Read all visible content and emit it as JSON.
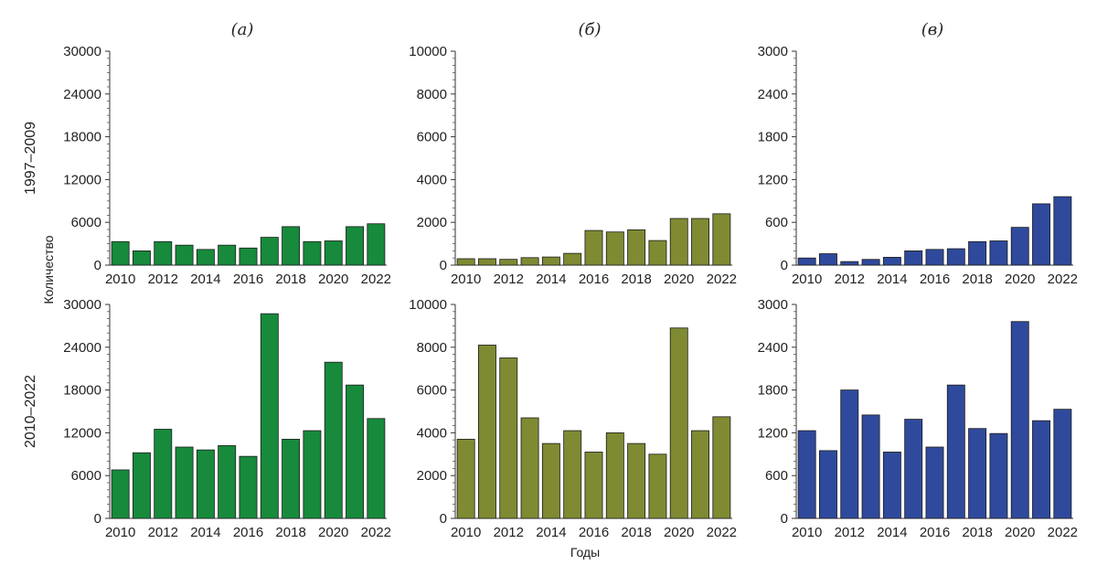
{
  "panel_titles": [
    "(а)",
    "(б)",
    "(в)"
  ],
  "row_labels": [
    "1997–2009",
    "2010–2022"
  ],
  "ylabel": "Количество",
  "xlabel": "Годы",
  "x_tick_labels": [
    "2010",
    "2012",
    "2014",
    "2016",
    "2018",
    "2020",
    "2022"
  ],
  "colors": {
    "a": "#178a3c",
    "b": "#7f8a32",
    "c": "#2f4a9c"
  },
  "chart_data": [
    {
      "type": "bar",
      "panel": "(а)",
      "row": "1997–2009",
      "categories": [
        2010,
        2011,
        2012,
        2013,
        2014,
        2015,
        2016,
        2017,
        2018,
        2019,
        2020,
        2021,
        2022
      ],
      "values": [
        3300,
        2000,
        3300,
        2800,
        2200,
        2800,
        2400,
        3900,
        5400,
        3300,
        3400,
        5400,
        5800
      ],
      "ylim": [
        0,
        30000
      ],
      "yticks": [
        0,
        6000,
        12000,
        18000,
        24000,
        30000
      ],
      "color": "#178a3c"
    },
    {
      "type": "bar",
      "panel": "(б)",
      "row": "1997–2009",
      "categories": [
        2010,
        2011,
        2012,
        2013,
        2014,
        2015,
        2016,
        2017,
        2018,
        2019,
        2020,
        2021,
        2022
      ],
      "values": [
        300,
        300,
        270,
        350,
        380,
        550,
        1620,
        1550,
        1650,
        1150,
        2180,
        2180,
        2400
      ],
      "ylim": [
        0,
        10000
      ],
      "yticks": [
        0,
        2000,
        4000,
        6000,
        8000,
        10000
      ],
      "color": "#7f8a32"
    },
    {
      "type": "bar",
      "panel": "(в)",
      "row": "1997–2009",
      "categories": [
        2010,
        2011,
        2012,
        2013,
        2014,
        2015,
        2016,
        2017,
        2018,
        2019,
        2020,
        2021,
        2022
      ],
      "values": [
        100,
        160,
        50,
        80,
        110,
        200,
        220,
        230,
        330,
        340,
        530,
        860,
        960
      ],
      "ylim": [
        0,
        3000
      ],
      "yticks": [
        0,
        600,
        1200,
        1800,
        2400,
        3000
      ],
      "color": "#2f4a9c"
    },
    {
      "type": "bar",
      "panel": "(а)",
      "row": "2010–2022",
      "categories": [
        2010,
        2011,
        2012,
        2013,
        2014,
        2015,
        2016,
        2017,
        2018,
        2019,
        2020,
        2021,
        2022
      ],
      "values": [
        6800,
        9200,
        12500,
        10000,
        9600,
        10200,
        8700,
        28700,
        11100,
        12300,
        21900,
        18700,
        14000
      ],
      "ylim": [
        0,
        30000
      ],
      "yticks": [
        0,
        6000,
        12000,
        18000,
        24000,
        30000
      ],
      "color": "#178a3c"
    },
    {
      "type": "bar",
      "panel": "(б)",
      "row": "2010–2022",
      "categories": [
        2010,
        2011,
        2012,
        2013,
        2014,
        2015,
        2016,
        2017,
        2018,
        2019,
        2020,
        2021,
        2022
      ],
      "values": [
        3700,
        8100,
        7500,
        4700,
        3500,
        4100,
        3100,
        4000,
        3500,
        3000,
        8900,
        4100,
        4750
      ],
      "ylim": [
        0,
        10000
      ],
      "yticks": [
        0,
        2000,
        4000,
        6000,
        8000,
        10000
      ],
      "color": "#7f8a32"
    },
    {
      "type": "bar",
      "panel": "(в)",
      "row": "2010–2022",
      "categories": [
        2010,
        2011,
        2012,
        2013,
        2014,
        2015,
        2016,
        2017,
        2018,
        2019,
        2020,
        2021,
        2022
      ],
      "values": [
        1230,
        950,
        1800,
        1450,
        930,
        1390,
        1000,
        1870,
        1260,
        1190,
        2760,
        1370,
        1530
      ],
      "ylim": [
        0,
        3000
      ],
      "yticks": [
        0,
        600,
        1200,
        1800,
        2400,
        3000
      ],
      "color": "#2f4a9c"
    }
  ]
}
